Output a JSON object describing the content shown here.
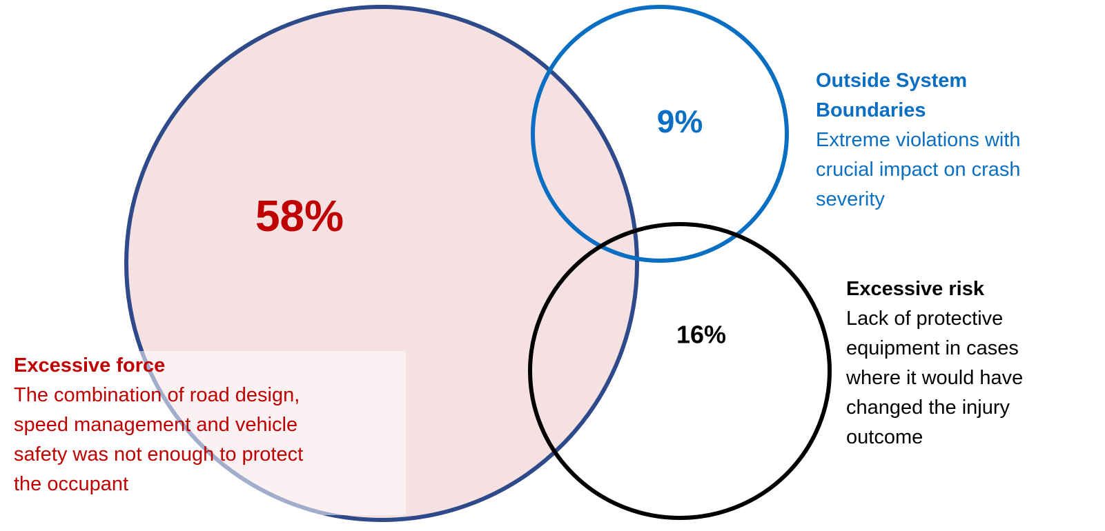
{
  "colors": {
    "force_text": "#C00000",
    "force_fill": "#F5E1E2",
    "force_stroke": "#2F4A8A",
    "boundary": "#0A6FC2",
    "risk": "#000000"
  },
  "sets": [
    {
      "key": "force",
      "percent": "58%",
      "title": "Excessive force",
      "description": "The combination of road design,\nspeed management and vehicle\nsafety was not enough to protect\nthe occupant"
    },
    {
      "key": "boundary",
      "percent": "9%",
      "title": "Outside System\nBoundaries",
      "description": "Extreme violations with\ncrucial impact on crash\nseverity"
    },
    {
      "key": "risk",
      "percent": "16%",
      "title": "Excessive risk",
      "description": "Lack of protective\nequipment in cases\nwhere it would have\nchanged the injury\noutcome"
    }
  ]
}
